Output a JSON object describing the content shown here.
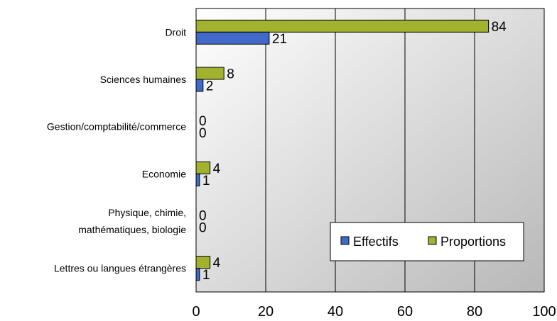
{
  "chart_data": {
    "type": "bar",
    "orientation": "horizontal",
    "title": "",
    "xlabel": "",
    "ylabel": "",
    "categories": [
      [
        "Droit"
      ],
      [
        "Sciences humaines"
      ],
      [
        "Gestion/comptabilité/commerce"
      ],
      [
        "Economie"
      ],
      [
        "Physique, chimie,",
        "mathématiques, biologie"
      ],
      [
        "Lettres ou langues étrangères"
      ]
    ],
    "series": [
      {
        "name": "Effectifs",
        "values": [
          21,
          2,
          0,
          1,
          0,
          1
        ],
        "color": "#4169c8"
      },
      {
        "name": "Proportions",
        "values": [
          84,
          8,
          0,
          4,
          0,
          4
        ],
        "color": "#a2b12e"
      }
    ],
    "xlim": [
      0,
      100
    ],
    "xticks": [
      0,
      20,
      40,
      60,
      80,
      100
    ],
    "grid": true,
    "legend_position": "bottom-right",
    "plot_background": "gradient-gray"
  }
}
